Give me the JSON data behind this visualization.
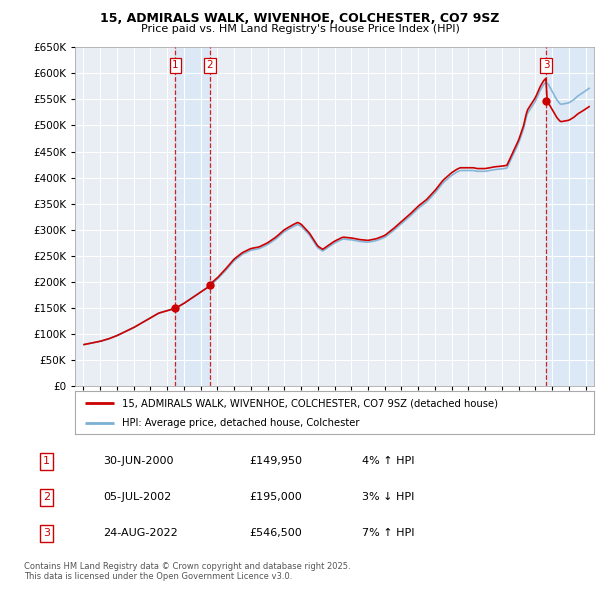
{
  "title": "15, ADMIRALS WALK, WIVENHOE, COLCHESTER, CO7 9SZ",
  "subtitle": "Price paid vs. HM Land Registry's House Price Index (HPI)",
  "sales": [
    {
      "date": 2000.5,
      "price": 149950,
      "label": "1",
      "text": "30-JUN-2000",
      "pct": "4%",
      "dir": "↑"
    },
    {
      "date": 2002.54,
      "price": 195000,
      "label": "2",
      "text": "05-JUL-2002",
      "pct": "3%",
      "dir": "↓"
    },
    {
      "date": 2022.65,
      "price": 546500,
      "label": "3",
      "text": "24-AUG-2022",
      "pct": "7%",
      "dir": "↑"
    }
  ],
  "hpi_label": "HPI: Average price, detached house, Colchester",
  "price_label": "15, ADMIRALS WALK, WIVENHOE, COLCHESTER, CO7 9SZ (detached house)",
  "footnote": "Contains HM Land Registry data © Crown copyright and database right 2025.\nThis data is licensed under the Open Government Licence v3.0.",
  "ylim": [
    0,
    650000
  ],
  "xlim": [
    1994.5,
    2025.5
  ],
  "yticks": [
    0,
    50000,
    100000,
    150000,
    200000,
    250000,
    300000,
    350000,
    400000,
    450000,
    500000,
    550000,
    600000,
    650000
  ],
  "background_color": "#ffffff",
  "plot_bg_color": "#e8eef4",
  "grid_color": "#ffffff",
  "red_color": "#cc0000",
  "blue_color": "#7bafd4",
  "shade_color": "#dce8f5"
}
